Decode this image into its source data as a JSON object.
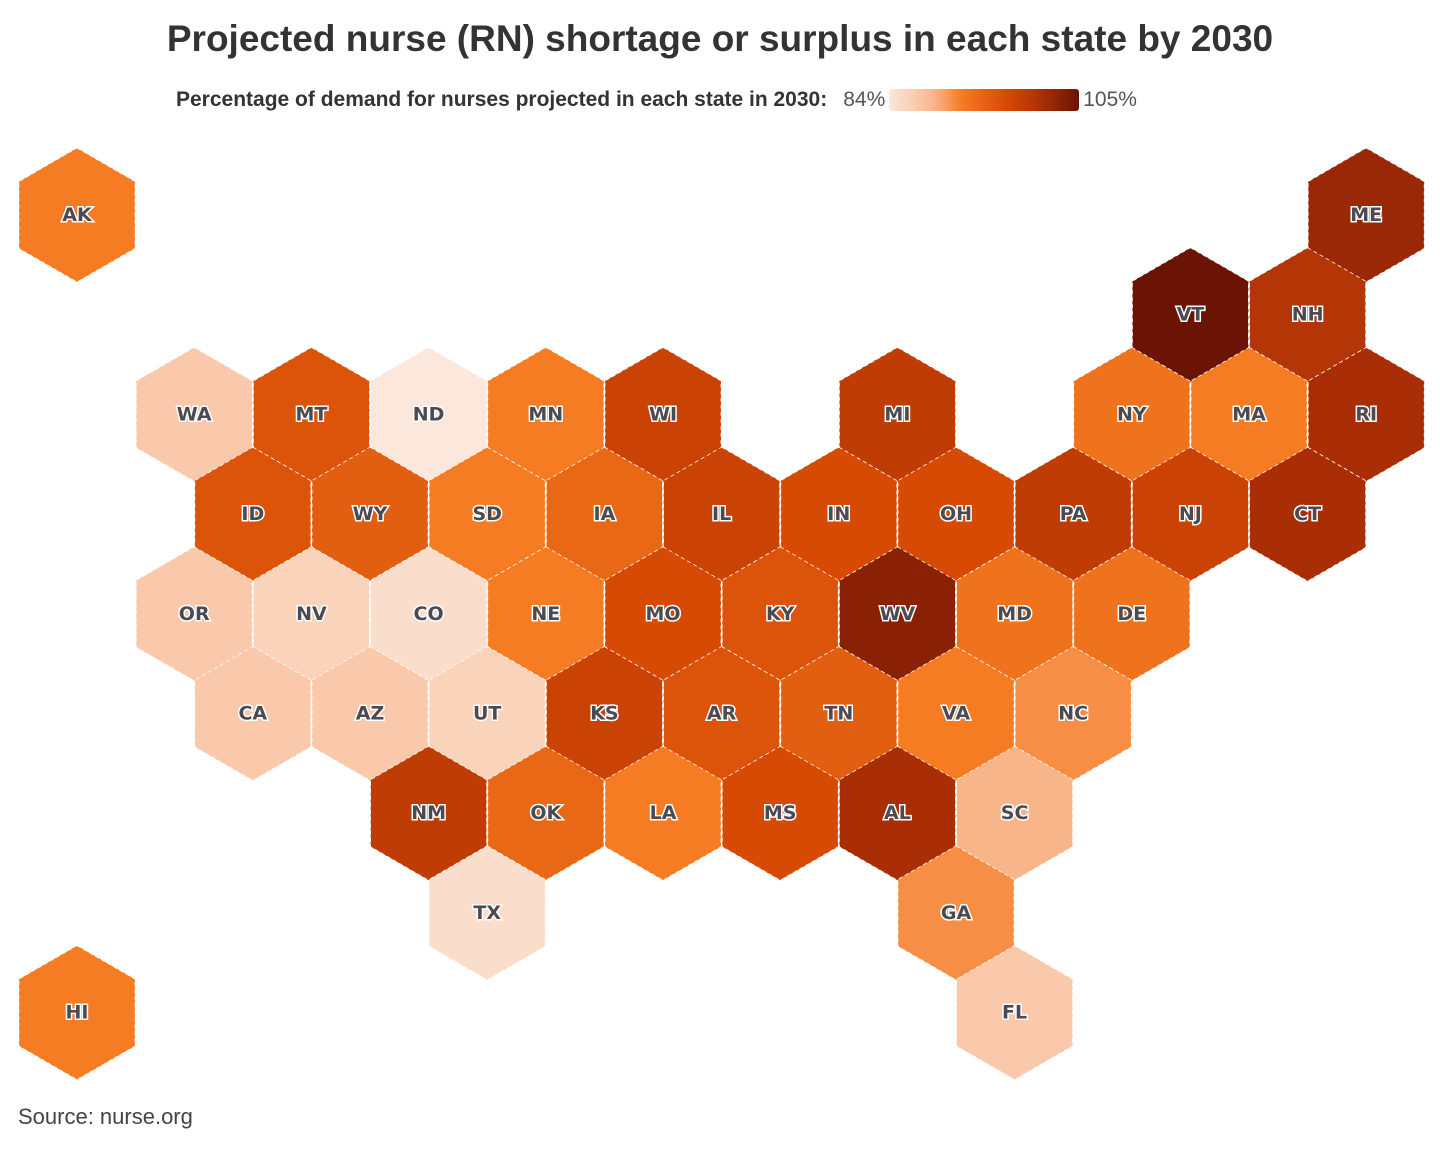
{
  "title": "Projected nurse (RN) shortage or surplus in each state by 2030",
  "legend": {
    "label": "Percentage of demand for nurses projected in each state in 2030:",
    "min_label": "84%",
    "max_label": "105%",
    "min": 84,
    "max": 105,
    "color_stops": [
      {
        "value": 84,
        "color": "#fbe7dc"
      },
      {
        "value": 89,
        "color": "#f9b58a"
      },
      {
        "value": 92,
        "color": "#f57c22"
      },
      {
        "value": 97,
        "color": "#d64a04"
      },
      {
        "value": 101,
        "color": "#a92e05"
      },
      {
        "value": 105,
        "color": "#6b1305"
      }
    ]
  },
  "source": "Source: nurse.org",
  "map_data": {
    "type": "hex-tile choropleth",
    "states": [
      {
        "abbr": "AK",
        "row": 0,
        "col": 0,
        "value": 92
      },
      {
        "abbr": "ME",
        "row": 0,
        "col": 22,
        "value": 102
      },
      {
        "abbr": "VT",
        "row": 1,
        "col": 19,
        "value": 105
      },
      {
        "abbr": "NH",
        "row": 1,
        "col": 21,
        "value": 100
      },
      {
        "abbr": "WA",
        "row": 2,
        "col": 2,
        "value": 87
      },
      {
        "abbr": "MT",
        "row": 2,
        "col": 4,
        "value": 96
      },
      {
        "abbr": "ND",
        "row": 2,
        "col": 6,
        "value": 84
      },
      {
        "abbr": "MN",
        "row": 2,
        "col": 8,
        "value": 92
      },
      {
        "abbr": "WI",
        "row": 2,
        "col": 10,
        "value": 98
      },
      {
        "abbr": "MI",
        "row": 2,
        "col": 14,
        "value": 99
      },
      {
        "abbr": "NY",
        "row": 2,
        "col": 18,
        "value": 93
      },
      {
        "abbr": "MA",
        "row": 2,
        "col": 20,
        "value": 92
      },
      {
        "abbr": "RI",
        "row": 2,
        "col": 22,
        "value": 101
      },
      {
        "abbr": "ID",
        "row": 3,
        "col": 3,
        "value": 96
      },
      {
        "abbr": "WY",
        "row": 3,
        "col": 5,
        "value": 95
      },
      {
        "abbr": "SD",
        "row": 3,
        "col": 7,
        "value": 92
      },
      {
        "abbr": "IA",
        "row": 3,
        "col": 9,
        "value": 94
      },
      {
        "abbr": "IL",
        "row": 3,
        "col": 11,
        "value": 98
      },
      {
        "abbr": "IN",
        "row": 3,
        "col": 13,
        "value": 97
      },
      {
        "abbr": "OH",
        "row": 3,
        "col": 15,
        "value": 97
      },
      {
        "abbr": "PA",
        "row": 3,
        "col": 17,
        "value": 99
      },
      {
        "abbr": "NJ",
        "row": 3,
        "col": 19,
        "value": 98
      },
      {
        "abbr": "CT",
        "row": 3,
        "col": 21,
        "value": 101
      },
      {
        "abbr": "OR",
        "row": 4,
        "col": 2,
        "value": 87
      },
      {
        "abbr": "NV",
        "row": 4,
        "col": 4,
        "value": 86
      },
      {
        "abbr": "CO",
        "row": 4,
        "col": 6,
        "value": 85
      },
      {
        "abbr": "NE",
        "row": 4,
        "col": 8,
        "value": 92
      },
      {
        "abbr": "MO",
        "row": 4,
        "col": 10,
        "value": 97
      },
      {
        "abbr": "KY",
        "row": 4,
        "col": 12,
        "value": 96
      },
      {
        "abbr": "WV",
        "row": 4,
        "col": 14,
        "value": 103
      },
      {
        "abbr": "MD",
        "row": 4,
        "col": 16,
        "value": 93
      },
      {
        "abbr": "DE",
        "row": 4,
        "col": 18,
        "value": 93
      },
      {
        "abbr": "CA",
        "row": 5,
        "col": 3,
        "value": 87
      },
      {
        "abbr": "AZ",
        "row": 5,
        "col": 5,
        "value": 87
      },
      {
        "abbr": "UT",
        "row": 5,
        "col": 7,
        "value": 86
      },
      {
        "abbr": "KS",
        "row": 5,
        "col": 9,
        "value": 98
      },
      {
        "abbr": "AR",
        "row": 5,
        "col": 11,
        "value": 96
      },
      {
        "abbr": "TN",
        "row": 5,
        "col": 13,
        "value": 95
      },
      {
        "abbr": "VA",
        "row": 5,
        "col": 15,
        "value": 92
      },
      {
        "abbr": "NC",
        "row": 5,
        "col": 17,
        "value": 91
      },
      {
        "abbr": "NM",
        "row": 6,
        "col": 6,
        "value": 99
      },
      {
        "abbr": "OK",
        "row": 6,
        "col": 8,
        "value": 94
      },
      {
        "abbr": "LA",
        "row": 6,
        "col": 10,
        "value": 92
      },
      {
        "abbr": "MS",
        "row": 6,
        "col": 12,
        "value": 97
      },
      {
        "abbr": "AL",
        "row": 6,
        "col": 14,
        "value": 101
      },
      {
        "abbr": "SC",
        "row": 6,
        "col": 16,
        "value": 89
      },
      {
        "abbr": "TX",
        "row": 7,
        "col": 7,
        "value": 85
      },
      {
        "abbr": "GA",
        "row": 7,
        "col": 15,
        "value": 91
      },
      {
        "abbr": "HI",
        "row": 8,
        "col": 0,
        "value": 92
      },
      {
        "abbr": "FL",
        "row": 8,
        "col": 16,
        "value": 87
      }
    ]
  }
}
